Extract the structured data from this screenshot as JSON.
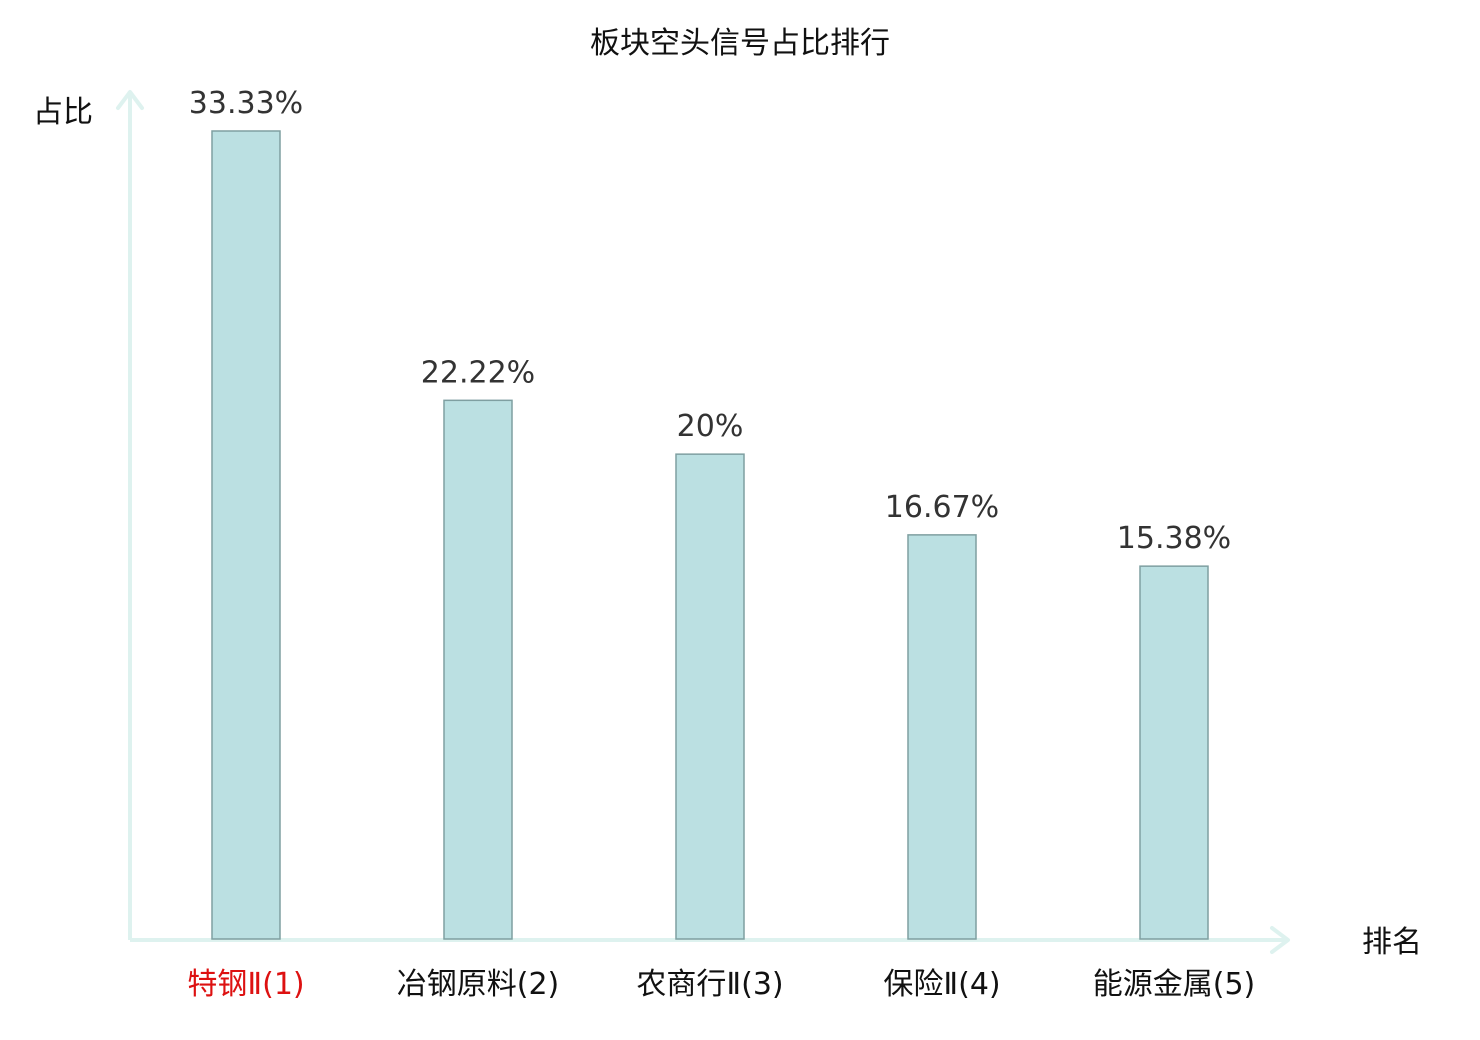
{
  "chart_data": {
    "type": "bar",
    "title": "板块空头信号占比排行",
    "ylabel": "占比",
    "xlabel": "排名",
    "categories": [
      "特钢Ⅱ(1)",
      "冶钢原料(2)",
      "农商行Ⅱ(3)",
      "保险Ⅱ(4)",
      "能源金属(5)"
    ],
    "values": [
      33.33,
      22.22,
      20,
      16.67,
      15.38
    ],
    "value_labels": [
      "33.33%",
      "22.22%",
      "20%",
      "16.67%",
      "15.38%"
    ],
    "ylim": [
      0,
      35
    ],
    "grid": false,
    "legend": "none",
    "highlight_index": 0,
    "colors": {
      "bar_fill": "#bbe0e2",
      "bar_stroke": "#7f9fa1",
      "axis": "#def2ef",
      "highlight_label": "#dd1111",
      "normal_label": "#111111"
    }
  }
}
